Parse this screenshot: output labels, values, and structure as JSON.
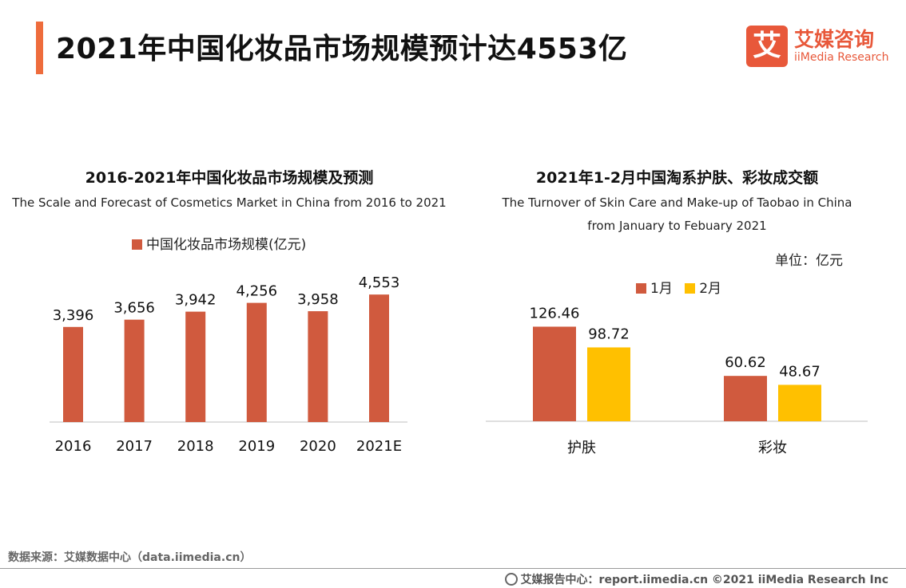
{
  "header": {
    "title": "2021年中国化妆品市场规模预计达4553亿",
    "logo": {
      "mark": "艾",
      "cn": "艾媒咨询",
      "en": "iiMedia Research"
    }
  },
  "left": {
    "title": "2016-2021年中国化妆品市场规模及预测",
    "subtitle": "The Scale and Forecast of Cosmetics Market in China from 2016 to 2021"
  },
  "right": {
    "title": "2021年1-2月中国淘系护肤、彩妆成交额",
    "subtitle_line1": "The Turnover of Skin Care and Make-up of Taobao in China",
    "subtitle_line2": "from January to Febuary 2021",
    "unit": "单位：亿元"
  },
  "colors": {
    "accent": "#ee6c3c",
    "bar": "#d05a3e",
    "jan": "#d05a3e",
    "feb": "#ffc000",
    "axis": "#bfbfbf"
  },
  "chart_data": [
    {
      "type": "bar",
      "title": "2016-2021年中国化妆品市场规模及预测",
      "subtitle": "The Scale and Forecast of Cosmetics Market in China from 2016 to 2021",
      "categories": [
        "2016",
        "2017",
        "2018",
        "2019",
        "2020",
        "2021E"
      ],
      "series": [
        {
          "name": "中国化妆品市场规模(亿元)",
          "values": [
            3396,
            3656,
            3942,
            4256,
            3958,
            4553
          ],
          "labels": [
            "3,396",
            "3,656",
            "3,942",
            "4,256",
            "3,958",
            "4,553"
          ]
        }
      ],
      "xlabel": "",
      "ylabel": "",
      "ylim": [
        0,
        4900
      ],
      "grid": false,
      "legend": "top-center"
    },
    {
      "type": "bar",
      "title": "2021年1-2月中国淘系护肤、彩妆成交额",
      "subtitle": "The Turnover of Skin Care and Make-up of Taobao in China from January to Febuary 2021",
      "categories": [
        "护肤",
        "彩妆"
      ],
      "series": [
        {
          "name": "1月",
          "values": [
            126.46,
            60.62
          ],
          "labels": [
            "126.46",
            "60.62"
          ]
        },
        {
          "name": "2月",
          "values": [
            98.72,
            48.67
          ],
          "labels": [
            "98.72",
            "48.67"
          ]
        }
      ],
      "unit": "单位：亿元",
      "xlabel": "",
      "ylabel": "",
      "ylim": [
        0,
        160
      ],
      "grid": false,
      "legend": "top-center"
    }
  ],
  "footer": {
    "source": "数据来源：艾媒数据中心（data.iimedia.cn）",
    "credit": "艾媒报告中心：report.iimedia.cn ©2021  iiMedia Research  Inc"
  }
}
